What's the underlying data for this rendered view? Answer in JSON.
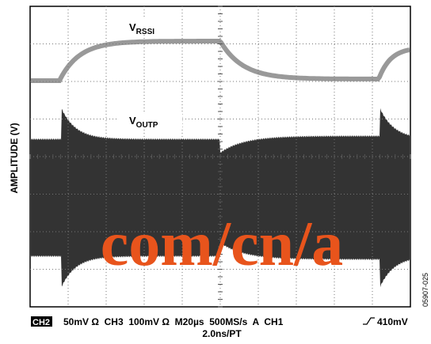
{
  "y_axis_label": "AMPLITUDE (V)",
  "traces": [
    {
      "label": "V",
      "subscript": "RSSI"
    },
    {
      "label": "V",
      "subscript": "OUTP"
    }
  ],
  "footer": {
    "channel": "CH2",
    "settings": "50mV Ω  CH3  100mV Ω  M20µs  500MS/s  A  CH1",
    "trigger_level": "410mV",
    "record": "2.0ns/PT"
  },
  "watermark": "com/cn/a",
  "figure_id": "05907-025"
}
